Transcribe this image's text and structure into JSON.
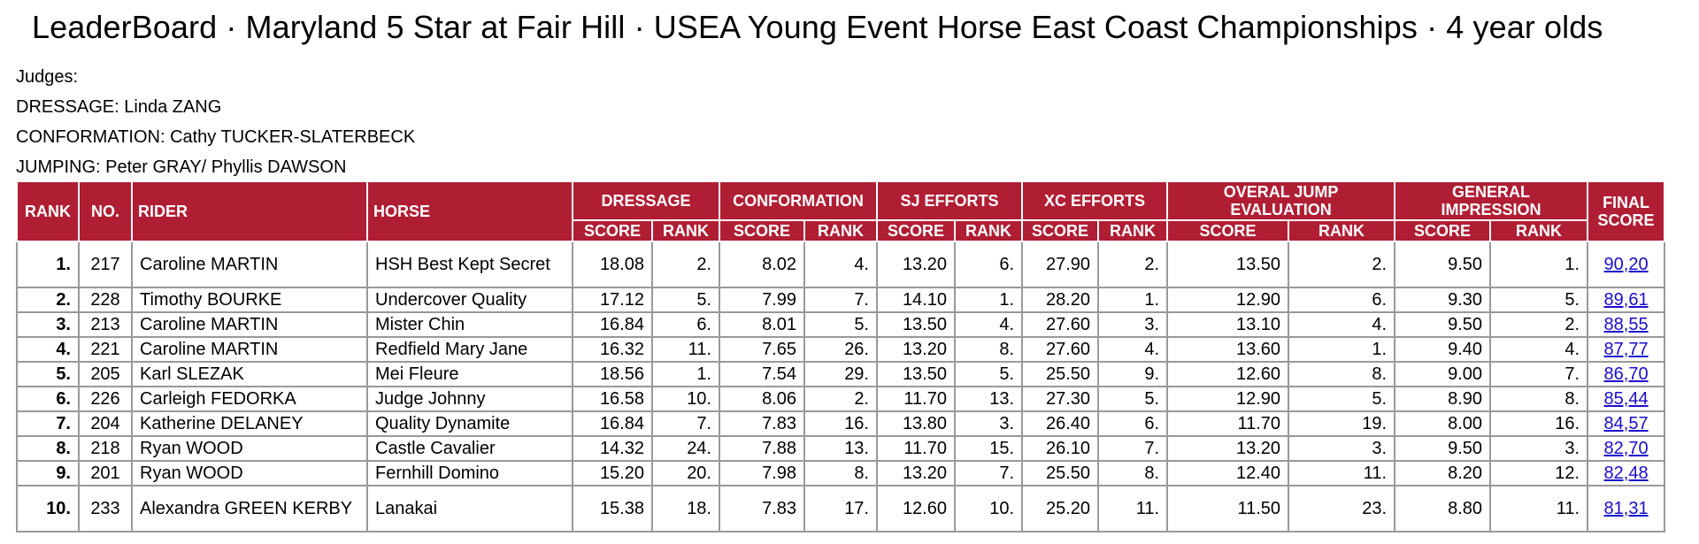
{
  "title": "LeaderBoard · Maryland 5 Star at Fair Hill · USEA Young Event Horse East Coast Championships · 4 year olds",
  "judges": {
    "heading": "Judges:",
    "dressage": "DRESSAGE: Linda ZANG",
    "conformation": "CONFORMATION: Cathy TUCKER-SLATERBECK",
    "jumping": "JUMPING: Peter GRAY/ Phyllis DAWSON"
  },
  "headers": {
    "rank": "RANK",
    "no": "NO.",
    "rider": "RIDER",
    "horse": "HORSE",
    "dressage": "DRESSAGE",
    "conformation": "CONFORMATION",
    "sj": "SJ EFFORTS",
    "xc": "XC EFFORTS",
    "overall": "OVERAL JUMP EVALUATION",
    "general": "GENERAL IMPRESSION",
    "final": "FINAL SCORE",
    "score": "SCORE",
    "rank_sub": "RANK"
  },
  "rows": [
    {
      "rank": "1.",
      "no": "217",
      "rider": "Caroline MARTIN",
      "horse": "HSH Best Kept Secret",
      "d_s": "18.08",
      "d_r": "2.",
      "c_s": "8.02",
      "c_r": "4.",
      "sj_s": "13.20",
      "sj_r": "6.",
      "xc_s": "27.90",
      "xc_r": "2.",
      "oj_s": "13.50",
      "oj_r": "2.",
      "gi_s": "9.50",
      "gi_r": "1.",
      "final": "90,20"
    },
    {
      "rank": "2.",
      "no": "228",
      "rider": "Timothy BOURKE",
      "horse": "Undercover Quality",
      "d_s": "17.12",
      "d_r": "5.",
      "c_s": "7.99",
      "c_r": "7.",
      "sj_s": "14.10",
      "sj_r": "1.",
      "xc_s": "28.20",
      "xc_r": "1.",
      "oj_s": "12.90",
      "oj_r": "6.",
      "gi_s": "9.30",
      "gi_r": "5.",
      "final": "89,61"
    },
    {
      "rank": "3.",
      "no": "213",
      "rider": "Caroline MARTIN",
      "horse": "Mister Chin",
      "d_s": "16.84",
      "d_r": "6.",
      "c_s": "8.01",
      "c_r": "5.",
      "sj_s": "13.50",
      "sj_r": "4.",
      "xc_s": "27.60",
      "xc_r": "3.",
      "oj_s": "13.10",
      "oj_r": "4.",
      "gi_s": "9.50",
      "gi_r": "2.",
      "final": "88,55"
    },
    {
      "rank": "4.",
      "no": "221",
      "rider": "Caroline MARTIN",
      "horse": "Redfield Mary Jane",
      "d_s": "16.32",
      "d_r": "11.",
      "c_s": "7.65",
      "c_r": "26.",
      "sj_s": "13.20",
      "sj_r": "8.",
      "xc_s": "27.60",
      "xc_r": "4.",
      "oj_s": "13.60",
      "oj_r": "1.",
      "gi_s": "9.40",
      "gi_r": "4.",
      "final": "87,77"
    },
    {
      "rank": "5.",
      "no": "205",
      "rider": "Karl SLEZAK",
      "horse": "Mei Fleure",
      "d_s": "18.56",
      "d_r": "1.",
      "c_s": "7.54",
      "c_r": "29.",
      "sj_s": "13.50",
      "sj_r": "5.",
      "xc_s": "25.50",
      "xc_r": "9.",
      "oj_s": "12.60",
      "oj_r": "8.",
      "gi_s": "9.00",
      "gi_r": "7.",
      "final": "86,70"
    },
    {
      "rank": "6.",
      "no": "226",
      "rider": "Carleigh FEDORKA",
      "horse": "Judge Johnny",
      "d_s": "16.58",
      "d_r": "10.",
      "c_s": "8.06",
      "c_r": "2.",
      "sj_s": "11.70",
      "sj_r": "13.",
      "xc_s": "27.30",
      "xc_r": "5.",
      "oj_s": "12.90",
      "oj_r": "5.",
      "gi_s": "8.90",
      "gi_r": "8.",
      "final": "85,44"
    },
    {
      "rank": "7.",
      "no": "204",
      "rider": "Katherine DELANEY",
      "horse": "Quality Dynamite",
      "d_s": "16.84",
      "d_r": "7.",
      "c_s": "7.83",
      "c_r": "16.",
      "sj_s": "13.80",
      "sj_r": "3.",
      "xc_s": "26.40",
      "xc_r": "6.",
      "oj_s": "11.70",
      "oj_r": "19.",
      "gi_s": "8.00",
      "gi_r": "16.",
      "final": "84,57"
    },
    {
      "rank": "8.",
      "no": "218",
      "rider": "Ryan WOOD",
      "horse": "Castle Cavalier",
      "d_s": "14.32",
      "d_r": "24.",
      "c_s": "7.88",
      "c_r": "13.",
      "sj_s": "11.70",
      "sj_r": "15.",
      "xc_s": "26.10",
      "xc_r": "7.",
      "oj_s": "13.20",
      "oj_r": "3.",
      "gi_s": "9.50",
      "gi_r": "3.",
      "final": "82,70"
    },
    {
      "rank": "9.",
      "no": "201",
      "rider": "Ryan WOOD",
      "horse": "Fernhill Domino",
      "d_s": "15.20",
      "d_r": "20.",
      "c_s": "7.98",
      "c_r": "8.",
      "sj_s": "13.20",
      "sj_r": "7.",
      "xc_s": "25.50",
      "xc_r": "8.",
      "oj_s": "12.40",
      "oj_r": "11.",
      "gi_s": "8.20",
      "gi_r": "12.",
      "final": "82,48"
    },
    {
      "rank": "10.",
      "no": "233",
      "rider": "Alexandra GREEN KERBY",
      "horse": "Lanakai",
      "d_s": "15.38",
      "d_r": "18.",
      "c_s": "7.83",
      "c_r": "17.",
      "sj_s": "12.60",
      "sj_r": "10.",
      "xc_s": "25.20",
      "xc_r": "11.",
      "oj_s": "11.50",
      "oj_r": "23.",
      "gi_s": "8.80",
      "gi_r": "11.",
      "final": "81,31"
    }
  ]
}
